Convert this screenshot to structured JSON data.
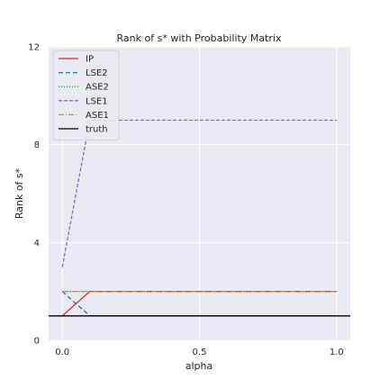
{
  "chart_data": {
    "type": "line",
    "title": "Rank of s* with Probability Matrix",
    "xlabel": "alpha",
    "ylabel": "Rank of s*",
    "xlim": [
      -0.05,
      1.05
    ],
    "ylim": [
      0,
      12
    ],
    "xticks": [
      0.0,
      0.5,
      1.0
    ],
    "xtick_labels": [
      "0.0",
      "0.5",
      "1.0"
    ],
    "yticks": [
      0,
      4,
      8,
      12
    ],
    "ytick_labels": [
      "0",
      "4",
      "8",
      "12"
    ],
    "grid": true,
    "legend_position": "top-left",
    "x": [
      0.0,
      0.1,
      0.2,
      0.3,
      0.4,
      0.5,
      0.6,
      0.7,
      0.8,
      0.9,
      1.0
    ],
    "series": [
      {
        "name": "IP",
        "color": "#d62728",
        "dash": "",
        "values": [
          1,
          2,
          2,
          2,
          2,
          2,
          2,
          2,
          2,
          2,
          2
        ]
      },
      {
        "name": "LSE2",
        "color": "#1f77b4",
        "dash": "5,3",
        "values": [
          2,
          1,
          1,
          1,
          1,
          1,
          1,
          1,
          1,
          1,
          1
        ]
      },
      {
        "name": "ASE2",
        "color": "#2ca02c",
        "dash": "1,2",
        "values": [
          2,
          2,
          2,
          2,
          2,
          2,
          2,
          2,
          2,
          2,
          2
        ]
      },
      {
        "name": "LSE1",
        "color": "#9467bd",
        "dash": "4,2",
        "values": [
          3,
          9,
          9,
          9,
          9,
          9,
          9,
          9,
          9,
          9,
          9
        ]
      },
      {
        "name": "ASE1",
        "color": "#ff7f0e",
        "dash": "6,2,1,2",
        "values": [
          2,
          2,
          2,
          2,
          2,
          2,
          2,
          2,
          2,
          2,
          2
        ]
      }
    ],
    "reference_line": {
      "name": "truth",
      "y": 1,
      "color": "#000000"
    }
  }
}
